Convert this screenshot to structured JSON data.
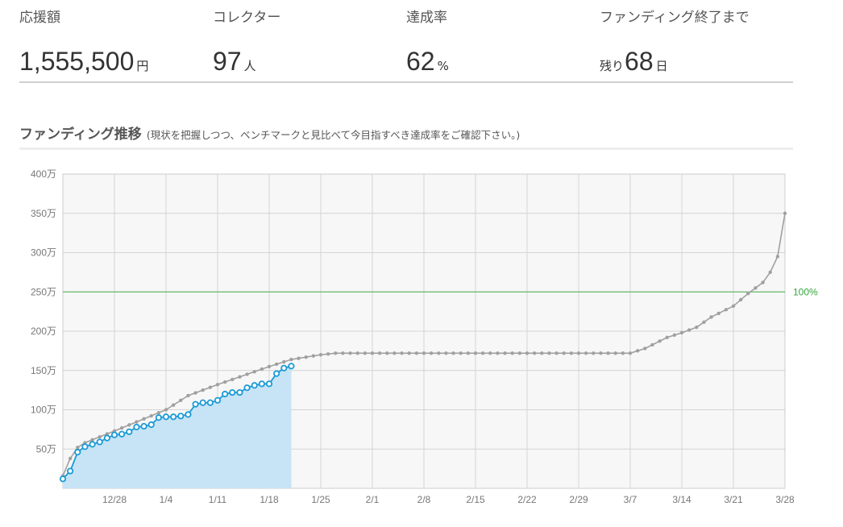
{
  "stats": {
    "amount": {
      "label": "応援額",
      "value": "1,555,500",
      "unit": "円"
    },
    "collectors": {
      "label": "コレクター",
      "value": "97",
      "unit": "人"
    },
    "rate": {
      "label": "達成率",
      "value": "62",
      "unit": "%"
    },
    "remaining": {
      "label": "ファンディング終了まで",
      "prefix": "残り",
      "value": "68",
      "unit": "日"
    }
  },
  "section": {
    "title": "ファンディング推移",
    "subtitle": "(現状を把握しつつ、ベンチマークと見比べて今目指すべき達成率をご確認下さい。)"
  },
  "colors": {
    "actual_line": "#1a9ad6",
    "actual_fill": "#c6e4f5",
    "benchmark": "#a0a0a0",
    "target": "#4cb050",
    "plot_bg": "#f7f7f7",
    "grid": "#d4d4d4"
  },
  "chart_data": {
    "type": "area",
    "unit": "万",
    "y_min": 0,
    "y_max": 400,
    "x_start": "2023-12-21",
    "x_end": "2024-03-28",
    "grid": true,
    "y_ticks": [
      {
        "value": 400,
        "label": "400万"
      },
      {
        "value": 350,
        "label": "350万"
      },
      {
        "value": 300,
        "label": "300万"
      },
      {
        "value": 250,
        "label": "250万"
      },
      {
        "value": 200,
        "label": "200万"
      },
      {
        "value": 150,
        "label": "150万"
      },
      {
        "value": 100,
        "label": "100万"
      },
      {
        "value": 50,
        "label": "50万"
      }
    ],
    "x_ticks": [
      {
        "date": "2023-12-28",
        "label": "12/28"
      },
      {
        "date": "2024-01-04",
        "label": "1/4"
      },
      {
        "date": "2024-01-11",
        "label": "1/11"
      },
      {
        "date": "2024-01-18",
        "label": "1/18"
      },
      {
        "date": "2024-01-25",
        "label": "1/25"
      },
      {
        "date": "2024-02-01",
        "label": "2/1"
      },
      {
        "date": "2024-02-08",
        "label": "2/8"
      },
      {
        "date": "2024-02-15",
        "label": "2/15"
      },
      {
        "date": "2024-02-22",
        "label": "2/22"
      },
      {
        "date": "2024-02-29",
        "label": "2/29"
      },
      {
        "date": "2024-03-07",
        "label": "3/7"
      },
      {
        "date": "2024-03-14",
        "label": "3/14"
      },
      {
        "date": "2024-03-21",
        "label": "3/21"
      },
      {
        "date": "2024-03-28",
        "label": "3/28"
      }
    ],
    "target": {
      "value": 250,
      "label": "100%"
    },
    "series": [
      {
        "role": "benchmark",
        "values": [
          [
            "2023-12-21",
            16
          ],
          [
            "2023-12-22",
            38
          ],
          [
            "2023-12-23",
            52
          ],
          [
            "2023-12-24",
            58
          ],
          [
            "2023-12-28",
            73
          ],
          [
            "2024-01-04",
            100
          ],
          [
            "2024-01-07",
            118
          ],
          [
            "2024-01-11",
            132
          ],
          [
            "2024-01-18",
            155
          ],
          [
            "2024-01-21",
            164
          ],
          [
            "2024-01-25",
            170
          ],
          [
            "2024-01-27",
            172
          ],
          [
            "2024-03-07",
            172
          ],
          [
            "2024-03-09",
            178
          ],
          [
            "2024-03-12",
            192
          ],
          [
            "2024-03-14",
            198
          ],
          [
            "2024-03-16",
            205
          ],
          [
            "2024-03-18",
            218
          ],
          [
            "2024-03-21",
            232
          ],
          [
            "2024-03-23",
            248
          ],
          [
            "2024-03-25",
            262
          ],
          [
            "2024-03-26",
            275
          ],
          [
            "2024-03-27",
            295
          ],
          [
            "2024-03-28",
            350
          ]
        ]
      },
      {
        "role": "actual",
        "values": [
          [
            "2023-12-21",
            12
          ],
          [
            "2023-12-22",
            22
          ],
          [
            "2023-12-23",
            46
          ],
          [
            "2023-12-24",
            53
          ],
          [
            "2023-12-25",
            56
          ],
          [
            "2023-12-26",
            59
          ],
          [
            "2023-12-27",
            64
          ],
          [
            "2023-12-28",
            68
          ],
          [
            "2023-12-29",
            69
          ],
          [
            "2023-12-30",
            72
          ],
          [
            "2023-12-31",
            78
          ],
          [
            "2024-01-01",
            79
          ],
          [
            "2024-01-02",
            81
          ],
          [
            "2024-01-03",
            90
          ],
          [
            "2024-01-04",
            91
          ],
          [
            "2024-01-05",
            91
          ],
          [
            "2024-01-06",
            92
          ],
          [
            "2024-01-07",
            94
          ],
          [
            "2024-01-08",
            107
          ],
          [
            "2024-01-09",
            109
          ],
          [
            "2024-01-10",
            109
          ],
          [
            "2024-01-11",
            112
          ],
          [
            "2024-01-12",
            120
          ],
          [
            "2024-01-13",
            122
          ],
          [
            "2024-01-14",
            122
          ],
          [
            "2024-01-15",
            128
          ],
          [
            "2024-01-16",
            131
          ],
          [
            "2024-01-17",
            133
          ],
          [
            "2024-01-18",
            133
          ],
          [
            "2024-01-19",
            146
          ],
          [
            "2024-01-20",
            153
          ],
          [
            "2024-01-21",
            155.55
          ]
        ]
      }
    ]
  }
}
